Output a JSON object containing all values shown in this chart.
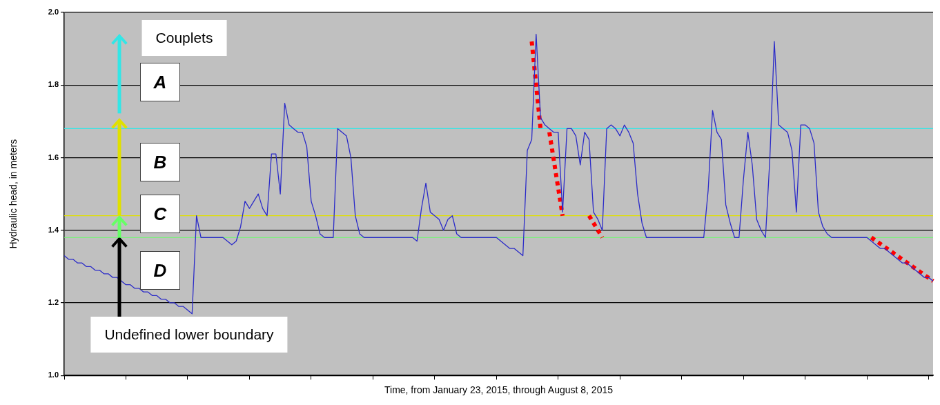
{
  "chart_data": {
    "type": "line",
    "xlabel": "Time, from January 23, 2015, through August 8, 2015",
    "ylabel": "Hydraulic head, in meters",
    "categories": [
      null,
      null,
      null,
      null,
      null,
      null,
      null,
      null,
      null,
      null,
      null,
      null,
      null,
      null,
      null,
      null,
      null,
      null,
      null,
      null,
      null,
      null,
      null,
      null,
      null,
      null,
      null,
      null,
      null,
      null,
      null,
      null,
      null,
      null,
      null,
      null,
      null,
      null,
      null,
      null,
      null,
      null,
      null,
      null,
      null,
      null,
      null,
      null,
      null,
      null,
      null,
      null,
      null,
      null,
      null,
      null,
      null,
      null,
      null,
      null,
      null,
      null,
      null,
      null,
      null,
      null,
      null,
      null,
      null,
      null,
      null,
      null,
      null,
      null,
      null,
      null,
      null,
      null,
      null,
      null,
      null,
      null,
      null,
      null,
      null,
      null,
      null,
      null,
      null,
      null,
      null,
      null,
      null,
      null,
      null,
      null,
      null,
      null,
      null,
      null,
      null,
      null,
      null,
      null,
      null,
      null,
      null,
      null,
      null,
      null,
      null,
      null,
      null,
      null,
      null,
      null,
      null,
      null,
      null,
      null,
      null,
      null,
      null,
      null,
      null,
      null,
      null,
      null,
      null,
      null,
      null,
      null,
      null,
      null,
      null,
      null,
      null,
      null,
      null,
      null,
      null,
      null,
      null,
      null,
      null,
      null,
      null,
      null,
      null,
      null,
      null,
      null,
      null,
      null,
      null,
      null,
      null,
      null,
      null,
      null,
      null,
      null,
      null,
      null,
      null,
      null,
      null,
      null,
      null,
      null,
      null,
      null,
      null,
      null,
      null,
      null,
      null,
      null,
      null,
      null,
      null,
      null,
      null,
      null,
      null,
      null,
      null,
      null,
      null,
      null,
      null,
      null,
      null,
      null,
      null,
      null,
      null,
      null
    ],
    "ylim": [
      1,
      2
    ],
    "yticks": [
      {
        "value": 1,
        "label": "1.0"
      },
      1.2,
      1.4,
      1.6,
      1.8,
      {
        "value": 2,
        "label": "2.0"
      }
    ],
    "tick_labels": "y",
    "grid": "y",
    "legend": false,
    "marker": "none",
    "series": [
      {
        "color": "#2b2bc8",
        "line_style": "solid",
        "values": [
          1.33,
          1.32,
          1.32,
          1.31,
          1.31,
          1.3,
          1.3,
          1.29,
          1.29,
          1.28,
          1.28,
          1.27,
          1.27,
          1.26,
          1.25,
          1.25,
          1.24,
          1.24,
          1.23,
          1.23,
          1.22,
          1.22,
          1.21,
          1.21,
          1.2,
          1.2,
          1.19,
          1.19,
          1.18,
          1.17,
          1.44,
          1.38,
          1.38,
          1.38,
          1.38,
          1.38,
          1.38,
          1.37,
          1.36,
          1.37,
          1.41,
          1.48,
          1.46,
          1.48,
          1.5,
          1.46,
          1.44,
          1.61,
          1.61,
          1.5,
          1.75,
          1.69,
          1.68,
          1.67,
          1.67,
          1.63,
          1.48,
          1.44,
          1.39,
          1.38,
          1.38,
          1.38,
          1.68,
          1.67,
          1.66,
          1.6,
          1.44,
          1.39,
          1.38,
          1.38,
          1.38,
          1.38,
          1.38,
          1.38,
          1.38,
          1.38,
          1.38,
          1.38,
          1.38,
          1.38,
          1.37,
          1.46,
          1.53,
          1.45,
          1.44,
          1.43,
          1.4,
          1.43,
          1.44,
          1.39,
          1.38,
          1.38,
          1.38,
          1.38,
          1.38,
          1.38,
          1.38,
          1.38,
          1.38,
          1.37,
          1.36,
          1.35,
          1.35,
          1.34,
          1.33,
          1.62,
          1.65,
          1.94,
          1.71,
          1.69,
          1.68,
          1.67,
          1.67,
          1.45,
          1.68,
          1.68,
          1.66,
          1.58,
          1.67,
          1.65,
          1.45,
          1.43,
          1.4,
          1.68,
          1.69,
          1.68,
          1.66,
          1.69,
          1.67,
          1.64,
          1.5,
          1.42,
          1.38,
          1.38,
          1.38,
          1.38,
          1.38,
          1.38,
          1.38,
          1.38,
          1.38,
          1.38,
          1.38,
          1.38,
          1.38,
          1.38,
          1.51,
          1.73,
          1.67,
          1.65,
          1.47,
          1.42,
          1.38,
          1.38,
          1.54,
          1.67,
          1.58,
          1.43,
          1.4,
          1.38,
          1.6,
          1.92,
          1.69,
          1.68,
          1.67,
          1.62,
          1.45,
          1.69,
          1.69,
          1.68,
          1.64,
          1.45,
          1.41,
          1.39,
          1.38,
          1.38,
          1.38,
          1.38,
          1.38,
          1.38,
          1.38,
          1.38,
          1.38,
          1.37,
          1.36,
          1.35,
          1.35,
          1.34,
          1.33,
          1.32,
          1.31,
          1.31,
          1.3,
          1.29,
          1.28,
          1.27,
          1.27,
          1.26
        ]
      },
      {
        "color": "#ff0000",
        "line_style": "dotted",
        "values": [
          null,
          null,
          null,
          null,
          null,
          null,
          null,
          null,
          null,
          null,
          null,
          null,
          null,
          null,
          null,
          null,
          null,
          null,
          null,
          null,
          null,
          null,
          null,
          null,
          null,
          null,
          null,
          null,
          null,
          null,
          null,
          null,
          null,
          null,
          null,
          null,
          null,
          null,
          null,
          null,
          null,
          null,
          null,
          null,
          null,
          null,
          null,
          null,
          null,
          null,
          null,
          null,
          null,
          null,
          null,
          null,
          null,
          null,
          null,
          null,
          null,
          null,
          null,
          null,
          null,
          null,
          null,
          null,
          null,
          null,
          null,
          null,
          null,
          null,
          null,
          null,
          null,
          null,
          null,
          null,
          null,
          null,
          null,
          null,
          null,
          null,
          null,
          null,
          null,
          null,
          null,
          null,
          null,
          null,
          null,
          null,
          null,
          null,
          null,
          null,
          null,
          null,
          null,
          null,
          null,
          null,
          1.92,
          null,
          1.68,
          null,
          null,
          null,
          null,
          null,
          null,
          null,
          null,
          null,
          null,
          null,
          null,
          null,
          null,
          null,
          null,
          null,
          null,
          null,
          null,
          null,
          null,
          null,
          null,
          null,
          null,
          null,
          null,
          null,
          null,
          null,
          null,
          null,
          null,
          null,
          null,
          null,
          null,
          null,
          null,
          null,
          null,
          null,
          null,
          null,
          null,
          null,
          null,
          null,
          null,
          null,
          null,
          null,
          null,
          null,
          null,
          null,
          null,
          null,
          null,
          null,
          null,
          null,
          null,
          null,
          null,
          null,
          null,
          null,
          null,
          null,
          null,
          null,
          null,
          null,
          null,
          null,
          null,
          null,
          null,
          null,
          null,
          null,
          null,
          null,
          null,
          null,
          null,
          null
        ]
      },
      {
        "color": "#ff0000",
        "line_style": "dotted",
        "values": [
          null,
          null,
          null,
          null,
          null,
          null,
          null,
          null,
          null,
          null,
          null,
          null,
          null,
          null,
          null,
          null,
          null,
          null,
          null,
          null,
          null,
          null,
          null,
          null,
          null,
          null,
          null,
          null,
          null,
          null,
          null,
          null,
          null,
          null,
          null,
          null,
          null,
          null,
          null,
          null,
          null,
          null,
          null,
          null,
          null,
          null,
          null,
          null,
          null,
          null,
          null,
          null,
          null,
          null,
          null,
          null,
          null,
          null,
          null,
          null,
          null,
          null,
          null,
          null,
          null,
          null,
          null,
          null,
          null,
          null,
          null,
          null,
          null,
          null,
          null,
          null,
          null,
          null,
          null,
          null,
          null,
          null,
          null,
          null,
          null,
          null,
          null,
          null,
          null,
          null,
          null,
          null,
          null,
          null,
          null,
          null,
          null,
          null,
          null,
          null,
          null,
          null,
          null,
          null,
          null,
          null,
          null,
          null,
          null,
          null,
          1.67,
          null,
          null,
          1.44,
          null,
          null,
          null,
          null,
          null,
          null,
          null,
          null,
          null,
          null,
          null,
          null,
          null,
          null,
          null,
          null,
          null,
          null,
          null,
          null,
          null,
          null,
          null,
          null,
          null,
          null,
          null,
          null,
          null,
          null,
          null,
          null,
          null,
          null,
          null,
          null,
          null,
          null,
          null,
          null,
          null,
          null,
          null,
          null,
          null,
          null,
          null,
          null,
          null,
          null,
          null,
          null,
          null,
          null,
          null,
          null,
          null,
          null,
          null,
          null,
          null,
          null,
          null,
          null,
          null,
          null,
          null,
          null,
          null,
          null,
          null,
          null,
          null,
          null,
          null,
          null,
          null,
          null,
          null,
          null,
          null,
          null,
          null,
          null
        ]
      },
      {
        "color": "#ff0000",
        "line_style": "dotted",
        "values": [
          null,
          null,
          null,
          null,
          null,
          null,
          null,
          null,
          null,
          null,
          null,
          null,
          null,
          null,
          null,
          null,
          null,
          null,
          null,
          null,
          null,
          null,
          null,
          null,
          null,
          null,
          null,
          null,
          null,
          null,
          null,
          null,
          null,
          null,
          null,
          null,
          null,
          null,
          null,
          null,
          null,
          null,
          null,
          null,
          null,
          null,
          null,
          null,
          null,
          null,
          null,
          null,
          null,
          null,
          null,
          null,
          null,
          null,
          null,
          null,
          null,
          null,
          null,
          null,
          null,
          null,
          null,
          null,
          null,
          null,
          null,
          null,
          null,
          null,
          null,
          null,
          null,
          null,
          null,
          null,
          null,
          null,
          null,
          null,
          null,
          null,
          null,
          null,
          null,
          null,
          null,
          null,
          null,
          null,
          null,
          null,
          null,
          null,
          null,
          null,
          null,
          null,
          null,
          null,
          null,
          null,
          null,
          null,
          null,
          null,
          null,
          null,
          null,
          null,
          null,
          null,
          null,
          null,
          null,
          1.44,
          null,
          null,
          1.38,
          null,
          null,
          null,
          null,
          null,
          null,
          null,
          null,
          null,
          null,
          null,
          null,
          null,
          null,
          null,
          null,
          null,
          null,
          null,
          null,
          null,
          null,
          null,
          null,
          null,
          null,
          null,
          null,
          null,
          null,
          null,
          null,
          null,
          null,
          null,
          null,
          null,
          null,
          null,
          null,
          null,
          null,
          null,
          null,
          null,
          null,
          null,
          null,
          null,
          null,
          null,
          null,
          null,
          null,
          null,
          null,
          null,
          null,
          null,
          null,
          null,
          null,
          null,
          null,
          null,
          null,
          null,
          null,
          null,
          null,
          null,
          null,
          null,
          null,
          null
        ]
      },
      {
        "color": "#ff0000",
        "line_style": "dotted",
        "values": [
          null,
          null,
          null,
          null,
          null,
          null,
          null,
          null,
          null,
          null,
          null,
          null,
          null,
          null,
          null,
          null,
          null,
          null,
          null,
          null,
          null,
          null,
          null,
          null,
          null,
          null,
          null,
          null,
          null,
          null,
          null,
          null,
          null,
          null,
          null,
          null,
          null,
          null,
          null,
          null,
          null,
          null,
          null,
          null,
          null,
          null,
          null,
          null,
          null,
          null,
          null,
          null,
          null,
          null,
          null,
          null,
          null,
          null,
          null,
          null,
          null,
          null,
          null,
          null,
          null,
          null,
          null,
          null,
          null,
          null,
          null,
          null,
          null,
          null,
          null,
          null,
          null,
          null,
          null,
          null,
          null,
          null,
          null,
          null,
          null,
          null,
          null,
          null,
          null,
          null,
          null,
          null,
          null,
          null,
          null,
          null,
          null,
          null,
          null,
          null,
          null,
          null,
          null,
          null,
          null,
          null,
          null,
          null,
          null,
          null,
          null,
          null,
          null,
          null,
          null,
          null,
          null,
          null,
          null,
          null,
          null,
          null,
          null,
          null,
          null,
          null,
          null,
          null,
          null,
          null,
          null,
          null,
          null,
          null,
          null,
          null,
          null,
          null,
          null,
          null,
          null,
          null,
          null,
          null,
          null,
          null,
          null,
          null,
          null,
          null,
          null,
          null,
          null,
          null,
          null,
          null,
          null,
          null,
          null,
          null,
          null,
          null,
          null,
          null,
          null,
          null,
          null,
          null,
          null,
          null,
          null,
          null,
          null,
          null,
          null,
          null,
          null,
          null,
          null,
          null,
          null,
          null,
          null,
          1.38,
          null,
          null,
          null,
          null,
          null,
          null,
          null,
          null,
          null,
          null,
          null,
          null,
          null,
          1.26
        ]
      }
    ],
    "ref_lines": [
      {
        "axis": "y",
        "value": 1.38,
        "color": "#66ff66"
      },
      {
        "axis": "y",
        "value": 1.44,
        "color": "#e0e000"
      },
      {
        "axis": "y",
        "value": 1.68,
        "color": "#33e6e6"
      }
    ],
    "annotations": [
      "Couplets",
      "A",
      "B",
      "C",
      "D",
      "Undefined lower boundary"
    ]
  }
}
